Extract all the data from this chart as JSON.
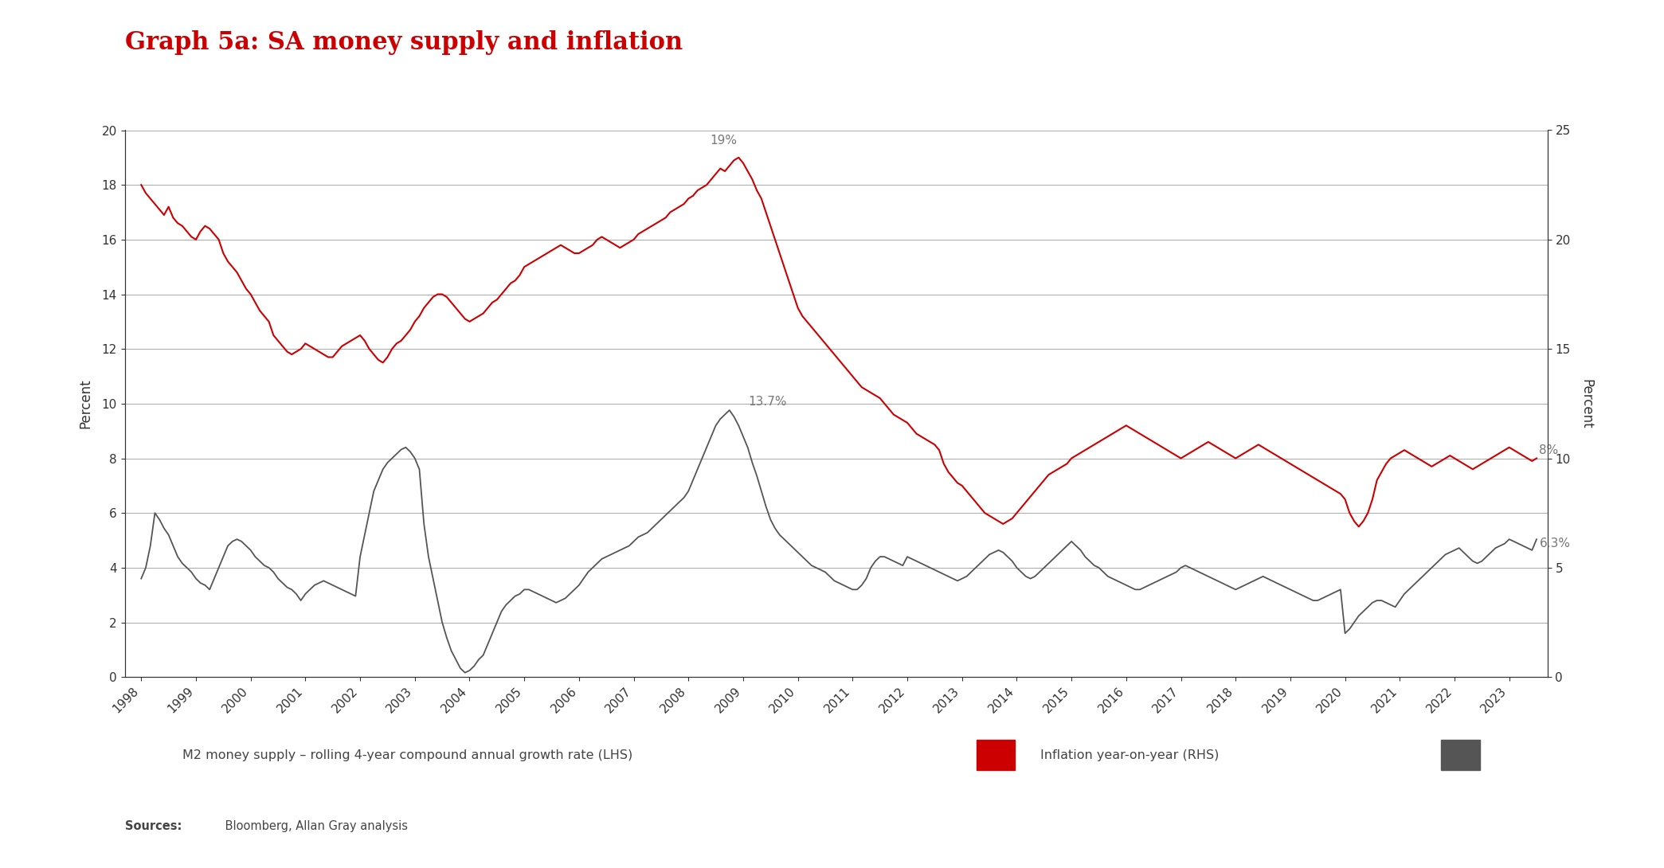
{
  "title": "Graph 5a: SA money supply and inflation",
  "title_color": "#cc0000",
  "background_color": "#ffffff",
  "plot_bg_color": "#ffffff",
  "text_color": "#333333",
  "grid_color": "#aaaaaa",
  "spine_color": "#333333",
  "lhs_label": "Percent",
  "rhs_label": "Percent",
  "lhs_ylim": [
    0,
    20
  ],
  "rhs_ylim": [
    0,
    25
  ],
  "lhs_yticks": [
    0,
    2,
    4,
    6,
    8,
    10,
    12,
    14,
    16,
    18,
    20
  ],
  "rhs_yticks": [
    0,
    5,
    10,
    15,
    20,
    25
  ],
  "legend_label_m2": "M2 money supply – rolling 4-year compound annual growth rate (LHS)",
  "legend_label_inf": "Inflation year-on-year (RHS)",
  "sources_bold": "Sources:",
  "sources_rest": " Bloomberg, Allan Gray analysis",
  "annotation_color": "#777777",
  "m2_color": "#cc0000",
  "inflation_color": "#555555",
  "m2_linewidth": 1.5,
  "inflation_linewidth": 1.3,
  "years": [
    1998,
    1999,
    2000,
    2001,
    2002,
    2003,
    2004,
    2005,
    2006,
    2007,
    2008,
    2009,
    2010,
    2011,
    2012,
    2013,
    2014,
    2015,
    2016,
    2017,
    2018,
    2019,
    2020,
    2021,
    2022,
    2023
  ],
  "m2_data_x": [
    1998.0,
    1998.083,
    1998.167,
    1998.25,
    1998.333,
    1998.417,
    1998.5,
    1998.583,
    1998.667,
    1998.75,
    1998.833,
    1998.917,
    1999.0,
    1999.083,
    1999.167,
    1999.25,
    1999.333,
    1999.417,
    1999.5,
    1999.583,
    1999.667,
    1999.75,
    1999.833,
    1999.917,
    2000.0,
    2000.083,
    2000.167,
    2000.25,
    2000.333,
    2000.417,
    2000.5,
    2000.583,
    2000.667,
    2000.75,
    2000.833,
    2000.917,
    2001.0,
    2001.083,
    2001.167,
    2001.25,
    2001.333,
    2001.417,
    2001.5,
    2001.583,
    2001.667,
    2001.75,
    2001.833,
    2001.917,
    2002.0,
    2002.083,
    2002.167,
    2002.25,
    2002.333,
    2002.417,
    2002.5,
    2002.583,
    2002.667,
    2002.75,
    2002.833,
    2002.917,
    2003.0,
    2003.083,
    2003.167,
    2003.25,
    2003.333,
    2003.417,
    2003.5,
    2003.583,
    2003.667,
    2003.75,
    2003.833,
    2003.917,
    2004.0,
    2004.083,
    2004.167,
    2004.25,
    2004.333,
    2004.417,
    2004.5,
    2004.583,
    2004.667,
    2004.75,
    2004.833,
    2004.917,
    2005.0,
    2005.083,
    2005.167,
    2005.25,
    2005.333,
    2005.417,
    2005.5,
    2005.583,
    2005.667,
    2005.75,
    2005.833,
    2005.917,
    2006.0,
    2006.083,
    2006.167,
    2006.25,
    2006.333,
    2006.417,
    2006.5,
    2006.583,
    2006.667,
    2006.75,
    2006.833,
    2006.917,
    2007.0,
    2007.083,
    2007.167,
    2007.25,
    2007.333,
    2007.417,
    2007.5,
    2007.583,
    2007.667,
    2007.75,
    2007.833,
    2007.917,
    2008.0,
    2008.083,
    2008.167,
    2008.25,
    2008.333,
    2008.417,
    2008.5,
    2008.583,
    2008.667,
    2008.75,
    2008.833,
    2008.917,
    2009.0,
    2009.083,
    2009.167,
    2009.25,
    2009.333,
    2009.417,
    2009.5,
    2009.583,
    2009.667,
    2009.75,
    2009.833,
    2009.917,
    2010.0,
    2010.083,
    2010.167,
    2010.25,
    2010.333,
    2010.417,
    2010.5,
    2010.583,
    2010.667,
    2010.75,
    2010.833,
    2010.917,
    2011.0,
    2011.083,
    2011.167,
    2011.25,
    2011.333,
    2011.417,
    2011.5,
    2011.583,
    2011.667,
    2011.75,
    2011.833,
    2011.917,
    2012.0,
    2012.083,
    2012.167,
    2012.25,
    2012.333,
    2012.417,
    2012.5,
    2012.583,
    2012.667,
    2012.75,
    2012.833,
    2012.917,
    2013.0,
    2013.083,
    2013.167,
    2013.25,
    2013.333,
    2013.417,
    2013.5,
    2013.583,
    2013.667,
    2013.75,
    2013.833,
    2013.917,
    2014.0,
    2014.083,
    2014.167,
    2014.25,
    2014.333,
    2014.417,
    2014.5,
    2014.583,
    2014.667,
    2014.75,
    2014.833,
    2014.917,
    2015.0,
    2015.083,
    2015.167,
    2015.25,
    2015.333,
    2015.417,
    2015.5,
    2015.583,
    2015.667,
    2015.75,
    2015.833,
    2015.917,
    2016.0,
    2016.083,
    2016.167,
    2016.25,
    2016.333,
    2016.417,
    2016.5,
    2016.583,
    2016.667,
    2016.75,
    2016.833,
    2016.917,
    2017.0,
    2017.083,
    2017.167,
    2017.25,
    2017.333,
    2017.417,
    2017.5,
    2017.583,
    2017.667,
    2017.75,
    2017.833,
    2017.917,
    2018.0,
    2018.083,
    2018.167,
    2018.25,
    2018.333,
    2018.417,
    2018.5,
    2018.583,
    2018.667,
    2018.75,
    2018.833,
    2018.917,
    2019.0,
    2019.083,
    2019.167,
    2019.25,
    2019.333,
    2019.417,
    2019.5,
    2019.583,
    2019.667,
    2019.75,
    2019.833,
    2019.917,
    2020.0,
    2020.083,
    2020.167,
    2020.25,
    2020.333,
    2020.417,
    2020.5,
    2020.583,
    2020.667,
    2020.75,
    2020.833,
    2020.917,
    2021.0,
    2021.083,
    2021.167,
    2021.25,
    2021.333,
    2021.417,
    2021.5,
    2021.583,
    2021.667,
    2021.75,
    2021.833,
    2021.917,
    2022.0,
    2022.083,
    2022.167,
    2022.25,
    2022.333,
    2022.417,
    2022.5,
    2022.583,
    2022.667,
    2022.75,
    2022.833,
    2022.917,
    2023.0,
    2023.083,
    2023.167,
    2023.25,
    2023.333,
    2023.417,
    2023.5
  ],
  "m2_data_y": [
    18.0,
    17.7,
    17.5,
    17.3,
    17.1,
    16.9,
    17.2,
    16.8,
    16.6,
    16.5,
    16.3,
    16.1,
    16.0,
    16.3,
    16.5,
    16.4,
    16.2,
    16.0,
    15.5,
    15.2,
    15.0,
    14.8,
    14.5,
    14.2,
    14.0,
    13.7,
    13.4,
    13.2,
    13.0,
    12.5,
    12.3,
    12.1,
    11.9,
    11.8,
    11.9,
    12.0,
    12.2,
    12.1,
    12.0,
    11.9,
    11.8,
    11.7,
    11.7,
    11.9,
    12.1,
    12.2,
    12.3,
    12.4,
    12.5,
    12.3,
    12.0,
    11.8,
    11.6,
    11.5,
    11.7,
    12.0,
    12.2,
    12.3,
    12.5,
    12.7,
    13.0,
    13.2,
    13.5,
    13.7,
    13.9,
    14.0,
    14.0,
    13.9,
    13.7,
    13.5,
    13.3,
    13.1,
    13.0,
    13.1,
    13.2,
    13.3,
    13.5,
    13.7,
    13.8,
    14.0,
    14.2,
    14.4,
    14.5,
    14.7,
    15.0,
    15.1,
    15.2,
    15.3,
    15.4,
    15.5,
    15.6,
    15.7,
    15.8,
    15.7,
    15.6,
    15.5,
    15.5,
    15.6,
    15.7,
    15.8,
    16.0,
    16.1,
    16.0,
    15.9,
    15.8,
    15.7,
    15.8,
    15.9,
    16.0,
    16.2,
    16.3,
    16.4,
    16.5,
    16.6,
    16.7,
    16.8,
    17.0,
    17.1,
    17.2,
    17.3,
    17.5,
    17.6,
    17.8,
    17.9,
    18.0,
    18.2,
    18.4,
    18.6,
    18.5,
    18.7,
    18.9,
    19.0,
    18.8,
    18.5,
    18.2,
    17.8,
    17.5,
    17.0,
    16.5,
    16.0,
    15.5,
    15.0,
    14.5,
    14.0,
    13.5,
    13.2,
    13.0,
    12.8,
    12.6,
    12.4,
    12.2,
    12.0,
    11.8,
    11.6,
    11.4,
    11.2,
    11.0,
    10.8,
    10.6,
    10.5,
    10.4,
    10.3,
    10.2,
    10.0,
    9.8,
    9.6,
    9.5,
    9.4,
    9.3,
    9.1,
    8.9,
    8.8,
    8.7,
    8.6,
    8.5,
    8.3,
    7.8,
    7.5,
    7.3,
    7.1,
    7.0,
    6.8,
    6.6,
    6.4,
    6.2,
    6.0,
    5.9,
    5.8,
    5.7,
    5.6,
    5.7,
    5.8,
    6.0,
    6.2,
    6.4,
    6.6,
    6.8,
    7.0,
    7.2,
    7.4,
    7.5,
    7.6,
    7.7,
    7.8,
    8.0,
    8.1,
    8.2,
    8.3,
    8.4,
    8.5,
    8.6,
    8.7,
    8.8,
    8.9,
    9.0,
    9.1,
    9.2,
    9.1,
    9.0,
    8.9,
    8.8,
    8.7,
    8.6,
    8.5,
    8.4,
    8.3,
    8.2,
    8.1,
    8.0,
    8.1,
    8.2,
    8.3,
    8.4,
    8.5,
    8.6,
    8.5,
    8.4,
    8.3,
    8.2,
    8.1,
    8.0,
    8.1,
    8.2,
    8.3,
    8.4,
    8.5,
    8.4,
    8.3,
    8.2,
    8.1,
    8.0,
    7.9,
    7.8,
    7.7,
    7.6,
    7.5,
    7.4,
    7.3,
    7.2,
    7.1,
    7.0,
    6.9,
    6.8,
    6.7,
    6.5,
    6.0,
    5.7,
    5.5,
    5.7,
    6.0,
    6.5,
    7.2,
    7.5,
    7.8,
    8.0,
    8.1,
    8.2,
    8.3,
    8.2,
    8.1,
    8.0,
    7.9,
    7.8,
    7.7,
    7.8,
    7.9,
    8.0,
    8.1,
    8.0,
    7.9,
    7.8,
    7.7,
    7.6,
    7.7,
    7.8,
    7.9,
    8.0,
    8.1,
    8.2,
    8.3,
    8.4,
    8.3,
    8.2,
    8.1,
    8.0,
    7.9,
    8.0
  ],
  "inflation_data_x": [
    1998.0,
    1998.083,
    1998.167,
    1998.25,
    1998.333,
    1998.417,
    1998.5,
    1998.583,
    1998.667,
    1998.75,
    1998.833,
    1998.917,
    1999.0,
    1999.083,
    1999.167,
    1999.25,
    1999.333,
    1999.417,
    1999.5,
    1999.583,
    1999.667,
    1999.75,
    1999.833,
    1999.917,
    2000.0,
    2000.083,
    2000.167,
    2000.25,
    2000.333,
    2000.417,
    2000.5,
    2000.583,
    2000.667,
    2000.75,
    2000.833,
    2000.917,
    2001.0,
    2001.083,
    2001.167,
    2001.25,
    2001.333,
    2001.417,
    2001.5,
    2001.583,
    2001.667,
    2001.75,
    2001.833,
    2001.917,
    2002.0,
    2002.083,
    2002.167,
    2002.25,
    2002.333,
    2002.417,
    2002.5,
    2002.583,
    2002.667,
    2002.75,
    2002.833,
    2002.917,
    2003.0,
    2003.083,
    2003.167,
    2003.25,
    2003.333,
    2003.417,
    2003.5,
    2003.583,
    2003.667,
    2003.75,
    2003.833,
    2003.917,
    2004.0,
    2004.083,
    2004.167,
    2004.25,
    2004.333,
    2004.417,
    2004.5,
    2004.583,
    2004.667,
    2004.75,
    2004.833,
    2004.917,
    2005.0,
    2005.083,
    2005.167,
    2005.25,
    2005.333,
    2005.417,
    2005.5,
    2005.583,
    2005.667,
    2005.75,
    2005.833,
    2005.917,
    2006.0,
    2006.083,
    2006.167,
    2006.25,
    2006.333,
    2006.417,
    2006.5,
    2006.583,
    2006.667,
    2006.75,
    2006.833,
    2006.917,
    2007.0,
    2007.083,
    2007.167,
    2007.25,
    2007.333,
    2007.417,
    2007.5,
    2007.583,
    2007.667,
    2007.75,
    2007.833,
    2007.917,
    2008.0,
    2008.083,
    2008.167,
    2008.25,
    2008.333,
    2008.417,
    2008.5,
    2008.583,
    2008.667,
    2008.75,
    2008.833,
    2008.917,
    2009.0,
    2009.083,
    2009.167,
    2009.25,
    2009.333,
    2009.417,
    2009.5,
    2009.583,
    2009.667,
    2009.75,
    2009.833,
    2009.917,
    2010.0,
    2010.083,
    2010.167,
    2010.25,
    2010.333,
    2010.417,
    2010.5,
    2010.583,
    2010.667,
    2010.75,
    2010.833,
    2010.917,
    2011.0,
    2011.083,
    2011.167,
    2011.25,
    2011.333,
    2011.417,
    2011.5,
    2011.583,
    2011.667,
    2011.75,
    2011.833,
    2011.917,
    2012.0,
    2012.083,
    2012.167,
    2012.25,
    2012.333,
    2012.417,
    2012.5,
    2012.583,
    2012.667,
    2012.75,
    2012.833,
    2012.917,
    2013.0,
    2013.083,
    2013.167,
    2013.25,
    2013.333,
    2013.417,
    2013.5,
    2013.583,
    2013.667,
    2013.75,
    2013.833,
    2013.917,
    2014.0,
    2014.083,
    2014.167,
    2014.25,
    2014.333,
    2014.417,
    2014.5,
    2014.583,
    2014.667,
    2014.75,
    2014.833,
    2014.917,
    2015.0,
    2015.083,
    2015.167,
    2015.25,
    2015.333,
    2015.417,
    2015.5,
    2015.583,
    2015.667,
    2015.75,
    2015.833,
    2015.917,
    2016.0,
    2016.083,
    2016.167,
    2016.25,
    2016.333,
    2016.417,
    2016.5,
    2016.583,
    2016.667,
    2016.75,
    2016.833,
    2016.917,
    2017.0,
    2017.083,
    2017.167,
    2017.25,
    2017.333,
    2017.417,
    2017.5,
    2017.583,
    2017.667,
    2017.75,
    2017.833,
    2017.917,
    2018.0,
    2018.083,
    2018.167,
    2018.25,
    2018.333,
    2018.417,
    2018.5,
    2018.583,
    2018.667,
    2018.75,
    2018.833,
    2018.917,
    2019.0,
    2019.083,
    2019.167,
    2019.25,
    2019.333,
    2019.417,
    2019.5,
    2019.583,
    2019.667,
    2019.75,
    2019.833,
    2019.917,
    2020.0,
    2020.083,
    2020.167,
    2020.25,
    2020.333,
    2020.417,
    2020.5,
    2020.583,
    2020.667,
    2020.75,
    2020.833,
    2020.917,
    2021.0,
    2021.083,
    2021.167,
    2021.25,
    2021.333,
    2021.417,
    2021.5,
    2021.583,
    2021.667,
    2021.75,
    2021.833,
    2021.917,
    2022.0,
    2022.083,
    2022.167,
    2022.25,
    2022.333,
    2022.417,
    2022.5,
    2022.583,
    2022.667,
    2022.75,
    2022.833,
    2022.917,
    2023.0,
    2023.083,
    2023.167,
    2023.25,
    2023.333,
    2023.417,
    2023.5
  ],
  "inflation_data_y": [
    4.5,
    5.0,
    6.0,
    7.5,
    7.2,
    6.8,
    6.5,
    6.0,
    5.5,
    5.2,
    5.0,
    4.8,
    4.5,
    4.3,
    4.2,
    4.0,
    4.5,
    5.0,
    5.5,
    6.0,
    6.2,
    6.3,
    6.2,
    6.0,
    5.8,
    5.5,
    5.3,
    5.1,
    5.0,
    4.8,
    4.5,
    4.3,
    4.1,
    4.0,
    3.8,
    3.5,
    3.8,
    4.0,
    4.2,
    4.3,
    4.4,
    4.3,
    4.2,
    4.1,
    4.0,
    3.9,
    3.8,
    3.7,
    5.5,
    6.5,
    7.5,
    8.5,
    9.0,
    9.5,
    9.8,
    10.0,
    10.2,
    10.4,
    10.5,
    10.3,
    10.0,
    9.5,
    7.0,
    5.5,
    4.5,
    3.5,
    2.5,
    1.8,
    1.2,
    0.8,
    0.4,
    0.2,
    0.3,
    0.5,
    0.8,
    1.0,
    1.5,
    2.0,
    2.5,
    3.0,
    3.3,
    3.5,
    3.7,
    3.8,
    4.0,
    4.0,
    3.9,
    3.8,
    3.7,
    3.6,
    3.5,
    3.4,
    3.5,
    3.6,
    3.8,
    4.0,
    4.2,
    4.5,
    4.8,
    5.0,
    5.2,
    5.4,
    5.5,
    5.6,
    5.7,
    5.8,
    5.9,
    6.0,
    6.2,
    6.4,
    6.5,
    6.6,
    6.8,
    7.0,
    7.2,
    7.4,
    7.6,
    7.8,
    8.0,
    8.2,
    8.5,
    9.0,
    9.5,
    10.0,
    10.5,
    11.0,
    11.5,
    11.8,
    12.0,
    12.2,
    11.9,
    11.5,
    11.0,
    10.5,
    9.8,
    9.2,
    8.5,
    7.8,
    7.2,
    6.8,
    6.5,
    6.3,
    6.1,
    5.9,
    5.7,
    5.5,
    5.3,
    5.1,
    5.0,
    4.9,
    4.8,
    4.6,
    4.4,
    4.3,
    4.2,
    4.1,
    4.0,
    4.0,
    4.2,
    4.5,
    5.0,
    5.3,
    5.5,
    5.5,
    5.4,
    5.3,
    5.2,
    5.1,
    5.5,
    5.4,
    5.3,
    5.2,
    5.1,
    5.0,
    4.9,
    4.8,
    4.7,
    4.6,
    4.5,
    4.4,
    4.5,
    4.6,
    4.8,
    5.0,
    5.2,
    5.4,
    5.6,
    5.7,
    5.8,
    5.7,
    5.5,
    5.3,
    5.0,
    4.8,
    4.6,
    4.5,
    4.6,
    4.8,
    5.0,
    5.2,
    5.4,
    5.6,
    5.8,
    6.0,
    6.2,
    6.0,
    5.8,
    5.5,
    5.3,
    5.1,
    5.0,
    4.8,
    4.6,
    4.5,
    4.4,
    4.3,
    4.2,
    4.1,
    4.0,
    4.0,
    4.1,
    4.2,
    4.3,
    4.4,
    4.5,
    4.6,
    4.7,
    4.8,
    5.0,
    5.1,
    5.0,
    4.9,
    4.8,
    4.7,
    4.6,
    4.5,
    4.4,
    4.3,
    4.2,
    4.1,
    4.0,
    4.1,
    4.2,
    4.3,
    4.4,
    4.5,
    4.6,
    4.5,
    4.4,
    4.3,
    4.2,
    4.1,
    4.0,
    3.9,
    3.8,
    3.7,
    3.6,
    3.5,
    3.5,
    3.6,
    3.7,
    3.8,
    3.9,
    4.0,
    2.0,
    2.2,
    2.5,
    2.8,
    3.0,
    3.2,
    3.4,
    3.5,
    3.5,
    3.4,
    3.3,
    3.2,
    3.5,
    3.8,
    4.0,
    4.2,
    4.4,
    4.6,
    4.8,
    5.0,
    5.2,
    5.4,
    5.6,
    5.7,
    5.8,
    5.9,
    5.7,
    5.5,
    5.3,
    5.2,
    5.3,
    5.5,
    5.7,
    5.9,
    6.0,
    6.1,
    6.3,
    6.2,
    6.1,
    6.0,
    5.9,
    5.8,
    6.3
  ],
  "legend_bg_color": "#e8e8e8",
  "legend_text_color": "#444444"
}
